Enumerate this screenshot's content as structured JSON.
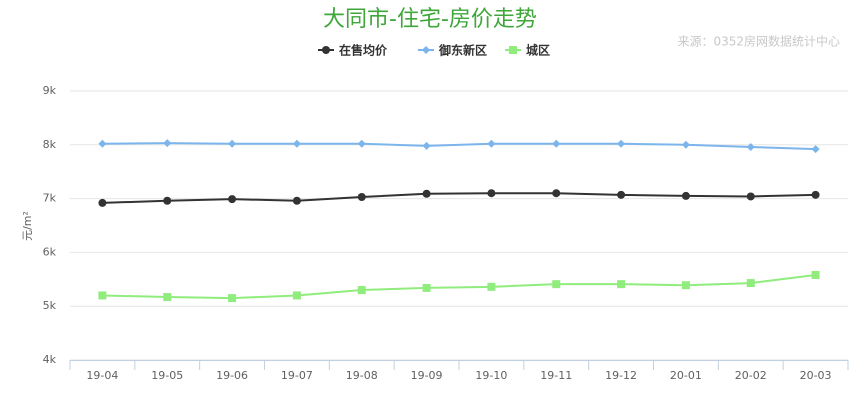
{
  "chart_data": {
    "type": "line",
    "title": "大同市-住宅-房价走势",
    "source": "来源：0352房网数据统计中心",
    "y_label": "元/m²",
    "categories": [
      "19-04",
      "19-05",
      "19-06",
      "19-07",
      "19-08",
      "19-09",
      "19-10",
      "19-11",
      "19-12",
      "20-01",
      "20-02",
      "20-03"
    ],
    "series": [
      {
        "name": "在售均价",
        "color": "#333333",
        "marker": "circle",
        "values": [
          6920,
          6960,
          6990,
          6960,
          7030,
          7090,
          7100,
          7100,
          7070,
          7050,
          7040,
          7070
        ]
      },
      {
        "name": "御东新区",
        "color": "#7cb5ec",
        "marker": "diamond",
        "values": [
          8020,
          8030,
          8020,
          8020,
          8020,
          7980,
          8020,
          8020,
          8020,
          8000,
          7960,
          7920
        ]
      },
      {
        "name": "城区",
        "color": "#90ed7d",
        "marker": "square",
        "values": [
          5200,
          5170,
          5150,
          5200,
          5300,
          5340,
          5360,
          5410,
          5410,
          5390,
          5430,
          5580
        ]
      }
    ],
    "ylim": [
      4000,
      9000
    ],
    "yticks": [
      {
        "value": 4000,
        "label": "4k"
      },
      {
        "value": 5000,
        "label": "5k"
      },
      {
        "value": 6000,
        "label": "6k"
      },
      {
        "value": 7000,
        "label": "7k"
      },
      {
        "value": 8000,
        "label": "8k"
      },
      {
        "value": 9000,
        "label": "9k"
      }
    ],
    "grid": true
  }
}
